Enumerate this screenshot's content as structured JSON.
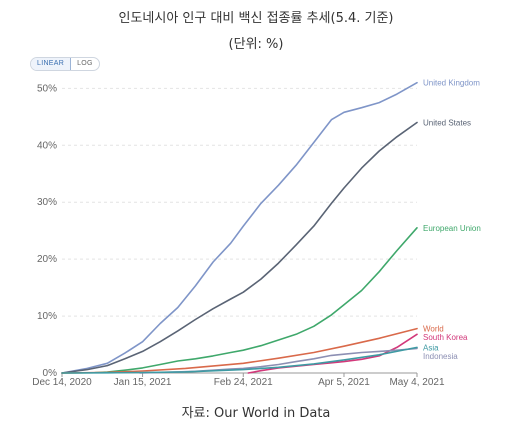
{
  "header": {
    "title": "인도네시아 인구 대비 백신 접종률 추세(5.4. 기준)",
    "subtitle": "(단위: %)"
  },
  "toggle": {
    "linear_label": "LINEAR",
    "log_label": "LOG",
    "selected": "LINEAR"
  },
  "footer": {
    "source": "자료: Our World in Data"
  },
  "colors": {
    "grid": "#e4e4e4",
    "tick": "#666666"
  },
  "chart_data": {
    "type": "line",
    "ylim": [
      0,
      52
    ],
    "yticks": [
      0,
      10,
      20,
      30,
      40,
      50
    ],
    "ytick_labels": [
      "0%",
      "10%",
      "20%",
      "30%",
      "40%",
      "50%"
    ],
    "x_range": [
      "2020-12-14",
      "2021-05-04"
    ],
    "xticks": [
      "2020-12-14",
      "2021-01-15",
      "2021-02-24",
      "2021-04-05",
      "2021-05-04"
    ],
    "xtick_labels": [
      "Dec 14, 2020",
      "Jan 15, 2021",
      "Feb 24, 2021",
      "Apr 5, 2021",
      "May 4, 2021"
    ],
    "grid": true,
    "legend_position": "right (line-end labels)",
    "series": [
      {
        "name": "United Kingdom",
        "color": "#7f95c8",
        "points": [
          [
            "2020-12-14",
            0
          ],
          [
            "2020-12-24",
            0.8
          ],
          [
            "2021-01-01",
            1.7
          ],
          [
            "2021-01-08",
            3.5
          ],
          [
            "2021-01-15",
            5.5
          ],
          [
            "2021-01-22",
            8.7
          ],
          [
            "2021-01-29",
            11.5
          ],
          [
            "2021-02-05",
            15.3
          ],
          [
            "2021-02-12",
            19.5
          ],
          [
            "2021-02-19",
            22.8
          ],
          [
            "2021-02-24",
            25.8
          ],
          [
            "2021-03-03",
            29.8
          ],
          [
            "2021-03-10",
            33.0
          ],
          [
            "2021-03-17",
            36.5
          ],
          [
            "2021-03-24",
            40.5
          ],
          [
            "2021-03-31",
            44.5
          ],
          [
            "2021-04-05",
            45.8
          ],
          [
            "2021-04-12",
            46.6
          ],
          [
            "2021-04-19",
            47.5
          ],
          [
            "2021-04-26",
            49.0
          ],
          [
            "2021-05-04",
            51.0
          ]
        ]
      },
      {
        "name": "United States",
        "color": "#5a6475",
        "points": [
          [
            "2020-12-14",
            0
          ],
          [
            "2020-12-24",
            0.6
          ],
          [
            "2021-01-01",
            1.3
          ],
          [
            "2021-01-08",
            2.5
          ],
          [
            "2021-01-15",
            3.8
          ],
          [
            "2021-01-22",
            5.5
          ],
          [
            "2021-01-29",
            7.4
          ],
          [
            "2021-02-05",
            9.4
          ],
          [
            "2021-02-12",
            11.3
          ],
          [
            "2021-02-19",
            13.0
          ],
          [
            "2021-02-24",
            14.2
          ],
          [
            "2021-03-03",
            16.5
          ],
          [
            "2021-03-10",
            19.3
          ],
          [
            "2021-03-17",
            22.5
          ],
          [
            "2021-03-24",
            25.8
          ],
          [
            "2021-03-31",
            29.8
          ],
          [
            "2021-04-05",
            32.5
          ],
          [
            "2021-04-12",
            36.0
          ],
          [
            "2021-04-19",
            39.0
          ],
          [
            "2021-04-26",
            41.5
          ],
          [
            "2021-05-04",
            44.0
          ]
        ]
      },
      {
        "name": "European Union",
        "color": "#3fa86b",
        "points": [
          [
            "2020-12-14",
            0
          ],
          [
            "2020-12-27",
            0.05
          ],
          [
            "2021-01-01",
            0.15
          ],
          [
            "2021-01-08",
            0.5
          ],
          [
            "2021-01-15",
            0.9
          ],
          [
            "2021-01-22",
            1.5
          ],
          [
            "2021-01-29",
            2.1
          ],
          [
            "2021-02-05",
            2.5
          ],
          [
            "2021-02-12",
            3.0
          ],
          [
            "2021-02-19",
            3.6
          ],
          [
            "2021-02-24",
            4.0
          ],
          [
            "2021-03-03",
            4.8
          ],
          [
            "2021-03-10",
            5.8
          ],
          [
            "2021-03-17",
            6.8
          ],
          [
            "2021-03-24",
            8.2
          ],
          [
            "2021-03-31",
            10.2
          ],
          [
            "2021-04-05",
            12.0
          ],
          [
            "2021-04-12",
            14.5
          ],
          [
            "2021-04-19",
            17.8
          ],
          [
            "2021-04-26",
            21.5
          ],
          [
            "2021-05-04",
            25.5
          ]
        ]
      },
      {
        "name": "World",
        "color": "#d9694a",
        "points": [
          [
            "2020-12-14",
            0
          ],
          [
            "2021-01-01",
            0.1
          ],
          [
            "2021-01-15",
            0.35
          ],
          [
            "2021-02-01",
            0.8
          ],
          [
            "2021-02-24",
            1.7
          ],
          [
            "2021-03-10",
            2.6
          ],
          [
            "2021-03-24",
            3.6
          ],
          [
            "2021-04-05",
            4.7
          ],
          [
            "2021-04-19",
            6.1
          ],
          [
            "2021-05-04",
            7.8
          ]
        ]
      },
      {
        "name": "South Korea",
        "color": "#d2387a",
        "points": [
          [
            "2021-02-26",
            0
          ],
          [
            "2021-03-03",
            0.4
          ],
          [
            "2021-03-10",
            0.9
          ],
          [
            "2021-03-17",
            1.2
          ],
          [
            "2021-03-24",
            1.5
          ],
          [
            "2021-03-31",
            1.8
          ],
          [
            "2021-04-05",
            2.0
          ],
          [
            "2021-04-12",
            2.4
          ],
          [
            "2021-04-19",
            3.0
          ],
          [
            "2021-04-26",
            4.5
          ],
          [
            "2021-05-04",
            6.8
          ]
        ]
      },
      {
        "name": "Indonesia",
        "color": "#8c8fb3",
        "points": [
          [
            "2021-01-14",
            0
          ],
          [
            "2021-01-22",
            0.1
          ],
          [
            "2021-01-29",
            0.2
          ],
          [
            "2021-02-05",
            0.3
          ],
          [
            "2021-02-12",
            0.5
          ],
          [
            "2021-02-19",
            0.7
          ],
          [
            "2021-02-24",
            0.8
          ],
          [
            "2021-03-03",
            1.1
          ],
          [
            "2021-03-10",
            1.5
          ],
          [
            "2021-03-17",
            2.0
          ],
          [
            "2021-03-24",
            2.5
          ],
          [
            "2021-03-31",
            3.1
          ],
          [
            "2021-04-05",
            3.3
          ],
          [
            "2021-04-12",
            3.6
          ],
          [
            "2021-04-19",
            3.8
          ],
          [
            "2021-04-26",
            4.0
          ],
          [
            "2021-05-04",
            4.3
          ]
        ]
      },
      {
        "name": "Asia",
        "color": "#3e9aa3",
        "points": [
          [
            "2020-12-14",
            0
          ],
          [
            "2021-01-01",
            0.03
          ],
          [
            "2021-01-15",
            0.08
          ],
          [
            "2021-02-01",
            0.2
          ],
          [
            "2021-02-24",
            0.6
          ],
          [
            "2021-03-10",
            1.0
          ],
          [
            "2021-03-24",
            1.6
          ],
          [
            "2021-04-05",
            2.3
          ],
          [
            "2021-04-19",
            3.2
          ],
          [
            "2021-05-04",
            4.5
          ]
        ]
      }
    ]
  }
}
